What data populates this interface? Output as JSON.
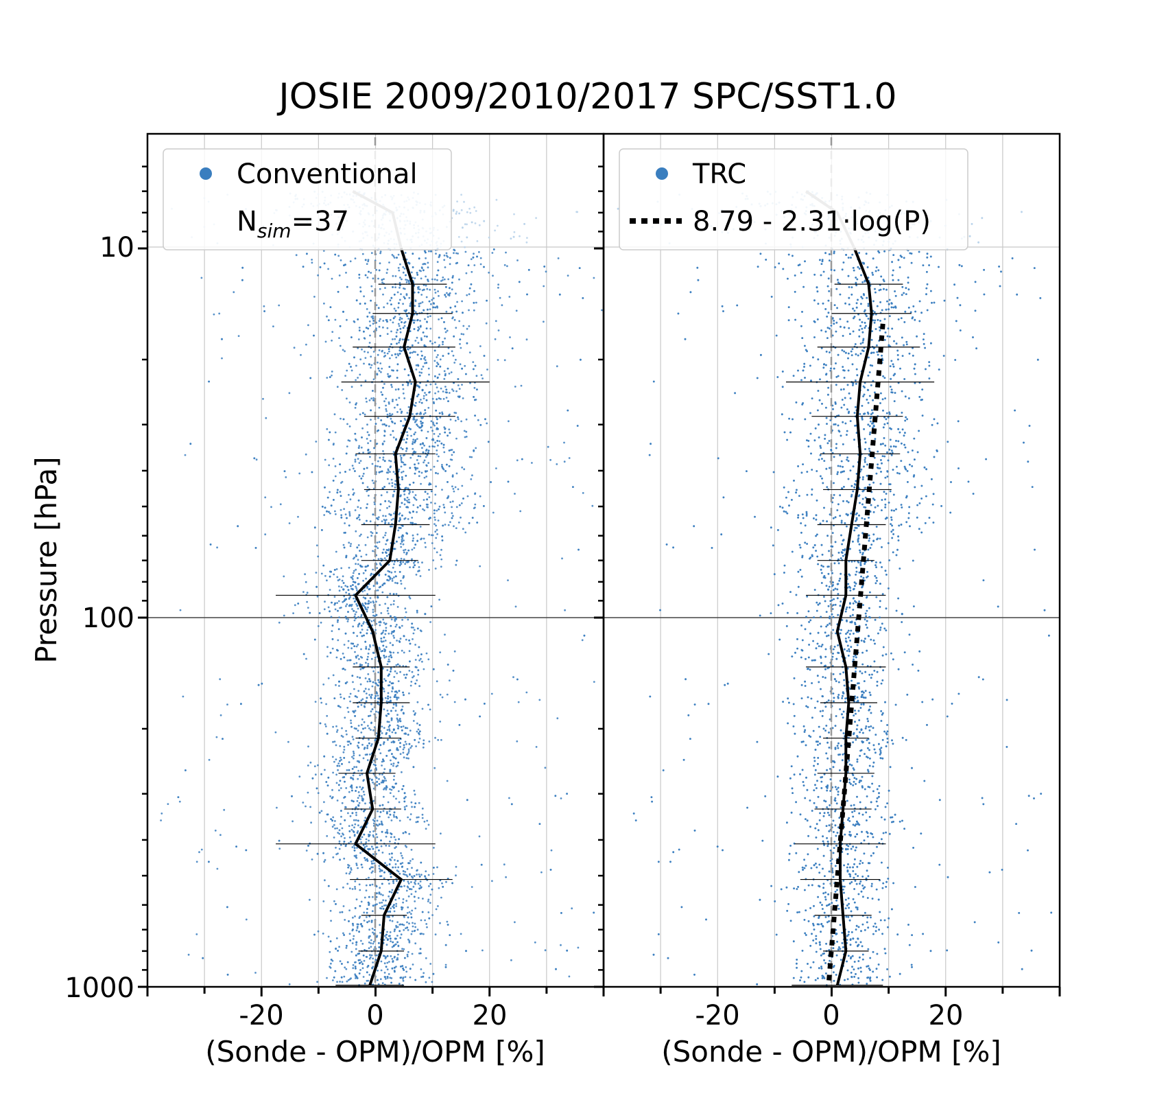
{
  "figure": {
    "title": "JOSIE 2009/2010/2017 SPC/SST1.0",
    "ylabel": "Pressure [hPa]",
    "y_ticks": [
      "10",
      "100",
      "1000"
    ],
    "y_scale": "log",
    "y_inverted": true
  },
  "colors": {
    "scatter": "#3a7ebf",
    "scatter_upper": "#b9d2ea",
    "median_line": "#000000",
    "median_line_upper": "#a7a7a7",
    "zero_line": "#999999",
    "grid": "#c8c8c8",
    "fit_line": "#000000"
  },
  "chart_data": [
    {
      "type": "scatter",
      "panel": "left",
      "xlabel": "(Sonde - OPM)/OPM [%]",
      "x_ticks": [
        "-20",
        "0",
        "20"
      ],
      "xlim": [
        -40,
        40
      ],
      "ylim": [
        1000,
        5
      ],
      "grid": true,
      "legend": {
        "placement": "upper-left",
        "entries": [
          {
            "marker": "dot",
            "label": "Conventional"
          },
          {
            "label_main": "N",
            "label_sub": "sim",
            "label_rest": "=37"
          }
        ]
      },
      "median_profile": {
        "pressure": [
          7,
          8,
          10,
          12.5,
          15,
          18.5,
          23,
          28.5,
          36,
          45,
          56,
          70,
          87,
          109,
          136,
          170,
          212,
          264,
          330,
          410,
          512,
          640,
          800,
          990
        ],
        "rel_diff": [
          -4,
          3,
          4.5,
          6.5,
          6.5,
          5,
          7,
          6,
          3.5,
          4,
          3.5,
          2.5,
          -3.5,
          -0.5,
          1,
          1,
          0.5,
          -1.5,
          -0.5,
          -3.5,
          4.5,
          1.5,
          1,
          -1
        ],
        "half_spread": [
          null,
          null,
          null,
          6,
          7,
          9,
          13,
          8,
          7,
          6,
          6,
          5,
          14,
          null,
          5,
          5,
          4,
          5,
          5,
          14,
          9,
          4,
          4,
          6
        ]
      }
    },
    {
      "type": "scatter",
      "panel": "right",
      "xlabel": "(Sonde - OPM)/OPM [%]",
      "x_ticks": [
        "-20",
        "0",
        "20"
      ],
      "xlim": [
        -40,
        40
      ],
      "ylim": [
        1000,
        5
      ],
      "grid": true,
      "legend": {
        "placement": "upper-left",
        "entries": [
          {
            "marker": "dot",
            "label": "TRC"
          },
          {
            "marker": "dotted-line",
            "label": "8.79 - 2.31·log(P)"
          }
        ]
      },
      "fit": {
        "intercept": 8.79,
        "slope": -2.31,
        "label": "8.79 - 2.31·log(P)"
      },
      "median_profile": {
        "pressure": [
          7,
          8,
          10,
          12.5,
          15,
          18.5,
          23,
          28.5,
          36,
          45,
          56,
          70,
          87,
          109,
          136,
          170,
          212,
          264,
          330,
          410,
          512,
          640,
          800,
          990
        ],
        "rel_diff": [
          -4.5,
          1,
          4,
          6.5,
          7,
          6.5,
          5,
          4.5,
          5,
          4.5,
          3.5,
          2.5,
          2.5,
          1,
          2.5,
          3,
          2.5,
          2.5,
          2,
          1.5,
          1.5,
          2,
          2.5,
          1
        ],
        "half_spread": [
          null,
          null,
          null,
          6,
          7,
          9,
          13,
          8,
          7,
          6,
          6,
          5,
          7,
          null,
          7,
          5,
          4,
          5,
          5,
          8,
          7,
          5,
          4,
          8
        ]
      }
    }
  ]
}
